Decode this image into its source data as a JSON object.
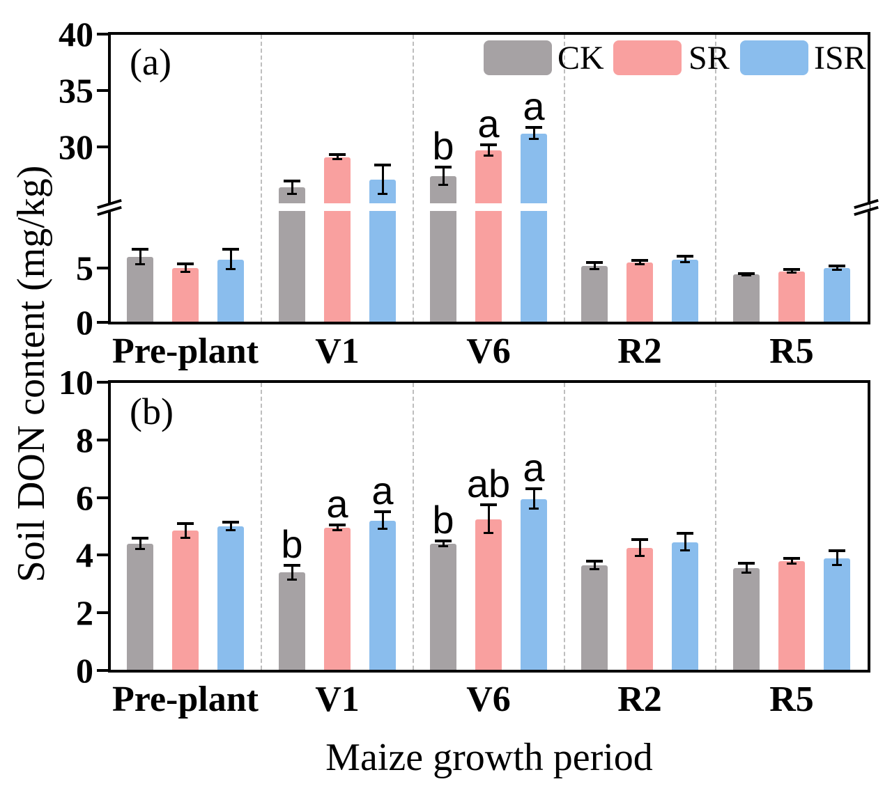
{
  "figure": {
    "y_axis_label": "Soil DON content (mg/kg)",
    "x_axis_label": "Maize growth period",
    "background_color": "#ffffff",
    "axis_color": "#000000",
    "separator_color": "#bdbdbd",
    "legend": [
      {
        "label": "CK",
        "color": "#a6a2a4",
        "swatch": "gray-rounded-rect"
      },
      {
        "label": "SR",
        "color": "#f9a09f",
        "swatch": "pink-rounded-rect"
      },
      {
        "label": "ISR",
        "color": "#8abded",
        "swatch": "blue-rounded-rect"
      }
    ]
  },
  "chart_data": [
    {
      "type": "bar",
      "panel": "(a)",
      "ylabel": "Soil DON content (mg/kg)",
      "xlabel": "Maize growth period",
      "categories": [
        "Pre-plant",
        "V1",
        "V6",
        "R2",
        "R5"
      ],
      "axis_style": "broken-y-axis",
      "ylim": [
        0,
        40
      ],
      "axis_break_range": [
        8,
        25
      ],
      "yticks_lower": [
        0,
        5
      ],
      "yticks_upper": [
        30,
        35,
        40
      ],
      "grid": "dashed-vertical-separators-between-groups",
      "legend_position": "top-right-inside",
      "series": [
        {
          "name": "CK",
          "color": "#a6a2a4",
          "values": [
            6.0,
            26.4,
            27.4,
            5.2,
            4.4
          ],
          "errors": [
            0.7,
            0.6,
            0.8,
            0.3,
            0.1
          ],
          "letters": [
            "",
            "",
            "b",
            "",
            ""
          ]
        },
        {
          "name": "SR",
          "color": "#f9a09f",
          "values": [
            5.0,
            29.1,
            29.7,
            5.5,
            4.7
          ],
          "errors": [
            0.4,
            0.2,
            0.5,
            0.2,
            0.15
          ],
          "letters": [
            "",
            "",
            "a",
            "",
            ""
          ]
        },
        {
          "name": "ISR",
          "color": "#8abded",
          "values": [
            5.8,
            27.1,
            31.2,
            5.8,
            5.0
          ],
          "errors": [
            0.9,
            1.3,
            0.5,
            0.3,
            0.2
          ],
          "letters": [
            "",
            "",
            "a",
            "",
            ""
          ]
        }
      ]
    },
    {
      "type": "bar",
      "panel": "(b)",
      "ylabel": "Soil DON content (mg/kg)",
      "xlabel": "Maize growth period",
      "categories": [
        "Pre-plant",
        "V1",
        "V6",
        "R2",
        "R5"
      ],
      "axis_style": "linear",
      "ylim": [
        0,
        10
      ],
      "yticks": [
        0,
        2,
        4,
        6,
        8,
        10
      ],
      "grid": "dashed-vertical-separators-between-groups",
      "series": [
        {
          "name": "CK",
          "color": "#a6a2a4",
          "values": [
            4.4,
            3.4,
            4.4,
            3.65,
            3.55
          ],
          "errors": [
            0.2,
            0.25,
            0.1,
            0.15,
            0.18
          ],
          "letters": [
            "",
            "b",
            "b",
            "",
            ""
          ]
        },
        {
          "name": "SR",
          "color": "#f9a09f",
          "values": [
            4.85,
            4.95,
            5.25,
            4.25,
            3.8
          ],
          "errors": [
            0.25,
            0.1,
            0.5,
            0.3,
            0.1
          ],
          "letters": [
            "",
            "a",
            "ab",
            "",
            ""
          ]
        },
        {
          "name": "ISR",
          "color": "#8abded",
          "values": [
            5.0,
            5.2,
            5.95,
            4.45,
            3.9
          ],
          "errors": [
            0.15,
            0.3,
            0.35,
            0.3,
            0.25
          ],
          "letters": [
            "",
            "a",
            "a",
            "",
            ""
          ]
        }
      ]
    }
  ]
}
